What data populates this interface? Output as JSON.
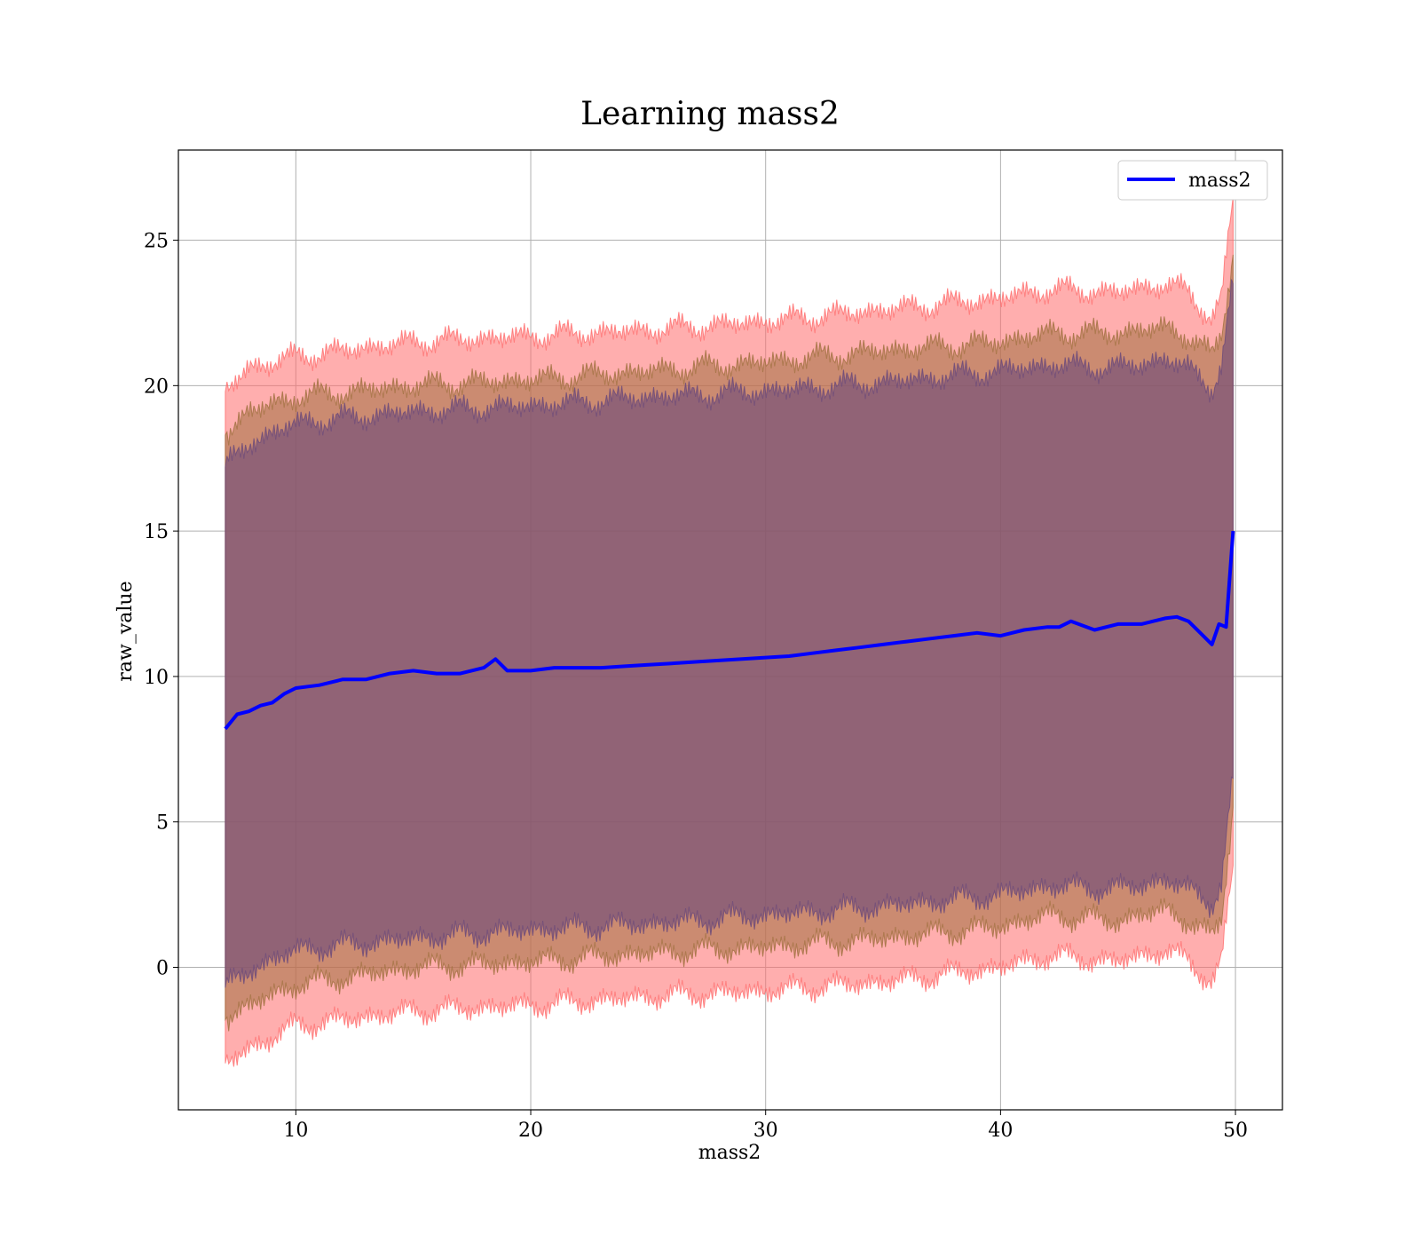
{
  "chart_data": {
    "type": "line",
    "title": "Learning mass2",
    "xlabel": "mass2",
    "ylabel": "raw_value",
    "xlim": [
      5,
      52
    ],
    "ylim": [
      -4.9,
      28.1
    ],
    "xticks": [
      10,
      20,
      30,
      40,
      50
    ],
    "yticks": [
      0,
      5,
      10,
      15,
      20,
      25
    ],
    "grid": true,
    "legend": {
      "placement": "upper right",
      "entries": [
        "mass2"
      ]
    },
    "colors": {
      "line": "#0000ff",
      "band_outer": "#ff6b6b",
      "band_middle": "#a07040",
      "band_inner": "#6b4a7a"
    },
    "series": [
      {
        "name": "mass2",
        "x": [
          7.0,
          7.5,
          8,
          8.5,
          9,
          9.5,
          10,
          11,
          12,
          13,
          14,
          15,
          16,
          17,
          18,
          18.5,
          19,
          20,
          21,
          22,
          23,
          24,
          25,
          26,
          27,
          28,
          29,
          30,
          31,
          32,
          33,
          34,
          35,
          36,
          37,
          38,
          39,
          40,
          41,
          42,
          42.5,
          43,
          44,
          45,
          46,
          47,
          47.5,
          48,
          48.5,
          49,
          49.3,
          49.6,
          49.9
        ],
        "y": [
          8.2,
          8.7,
          8.8,
          9.0,
          9.1,
          9.4,
          9.6,
          9.7,
          9.9,
          9.9,
          10.1,
          10.2,
          10.1,
          10.1,
          10.3,
          10.6,
          10.2,
          10.2,
          10.3,
          10.3,
          10.3,
          10.35,
          10.4,
          10.45,
          10.5,
          10.55,
          10.6,
          10.65,
          10.7,
          10.8,
          10.9,
          11.0,
          11.1,
          11.2,
          11.3,
          11.4,
          11.5,
          11.4,
          11.6,
          11.7,
          11.7,
          11.9,
          11.6,
          11.8,
          11.8,
          12.0,
          12.05,
          11.9,
          11.5,
          11.1,
          11.8,
          11.7,
          15.0
        ]
      }
    ],
    "bands": [
      {
        "layer": "outer",
        "x": [
          7.0,
          8,
          10,
          15,
          20,
          25,
          30,
          35,
          40,
          42,
          45,
          47,
          48,
          49,
          49.4,
          49.9
        ],
        "upper": [
          19.8,
          20.6,
          21.0,
          21.5,
          21.7,
          21.9,
          22.2,
          22.6,
          23.0,
          23.3,
          23.2,
          23.5,
          23.2,
          22.3,
          23.0,
          26.5
        ],
        "lower": [
          -3.3,
          -2.8,
          -2.0,
          -1.5,
          -1.3,
          -1.0,
          -0.8,
          -0.5,
          0.0,
          0.4,
          0.2,
          0.6,
          0.2,
          -0.5,
          0.2,
          3.5
        ]
      },
      {
        "layer": "middle",
        "x": [
          7.0,
          8,
          10,
          15,
          20,
          25,
          30,
          35,
          40,
          42,
          45,
          47,
          48,
          49,
          49.4,
          49.9
        ],
        "upper": [
          18.3,
          19.1,
          19.6,
          20.0,
          20.2,
          20.5,
          20.8,
          21.2,
          21.5,
          21.8,
          21.8,
          22.0,
          21.7,
          21.0,
          21.8,
          24.5
        ],
        "lower": [
          -1.8,
          -1.3,
          -0.6,
          0.0,
          0.2,
          0.5,
          0.7,
          1.0,
          1.4,
          1.8,
          1.6,
          2.0,
          1.6,
          1.0,
          1.7,
          5.5
        ]
      },
      {
        "layer": "inner",
        "x": [
          7.0,
          8,
          10,
          15,
          20,
          25,
          30,
          35,
          40,
          42,
          45,
          47,
          48,
          49,
          49.4,
          49.9
        ],
        "upper": [
          17.2,
          18.0,
          18.7,
          19.1,
          19.3,
          19.6,
          19.8,
          20.1,
          20.5,
          20.7,
          20.6,
          20.9,
          20.6,
          19.9,
          20.7,
          23.5
        ],
        "lower": [
          -0.7,
          -0.1,
          0.6,
          1.0,
          1.3,
          1.5,
          1.8,
          2.1,
          2.5,
          2.8,
          2.7,
          3.0,
          2.7,
          2.2,
          2.9,
          6.5
        ]
      }
    ]
  }
}
